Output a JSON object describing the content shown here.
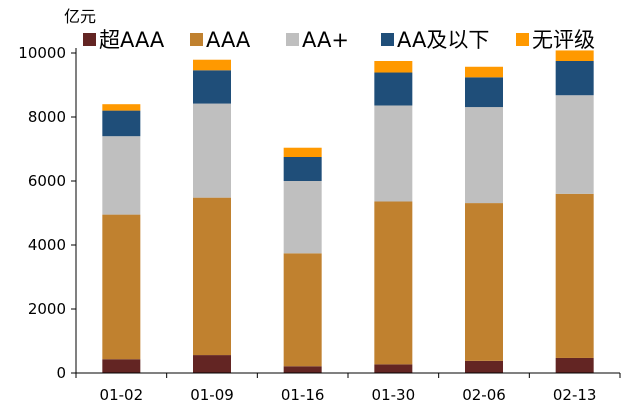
{
  "chart_data": {
    "type": "bar",
    "stacked": true,
    "unit_label": "亿元",
    "categories": [
      "01-02",
      "01-09",
      "01-16",
      "01-30",
      "02-06",
      "02-13"
    ],
    "ylim": [
      0,
      10000
    ],
    "yticks": [
      0,
      2000,
      4000,
      6000,
      8000,
      10000
    ],
    "grid": false,
    "legend_position": "top",
    "series": [
      {
        "name": "超AAA",
        "color": "#632523",
        "values": [
          430,
          560,
          210,
          270,
          380,
          470
        ]
      },
      {
        "name": "AAA",
        "color": "#C0812F",
        "values": [
          4520,
          4920,
          3530,
          5090,
          4930,
          5130
        ]
      },
      {
        "name": "AA+",
        "color": "#BFBFBF",
        "values": [
          2450,
          2940,
          2260,
          3000,
          3000,
          3080
        ]
      },
      {
        "name": "AA及以下",
        "color": "#1F4E79",
        "values": [
          800,
          1040,
          750,
          1030,
          930,
          1070
        ]
      },
      {
        "name": "无评级",
        "color": "#FF9900",
        "values": [
          200,
          330,
          290,
          360,
          330,
          330
        ]
      }
    ]
  }
}
